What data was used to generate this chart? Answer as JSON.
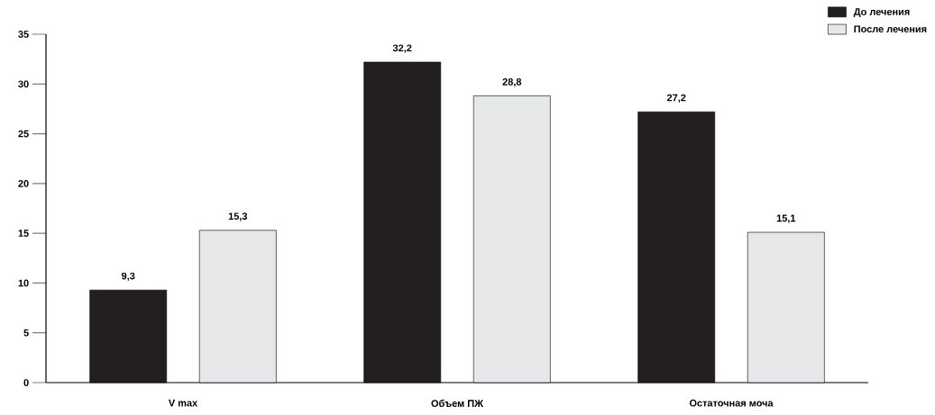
{
  "chart_data": {
    "type": "bar",
    "categories": [
      "V max",
      "Объем ПЖ",
      "Остаточная моча"
    ],
    "series": [
      {
        "name": "До лечения",
        "color": "#231f20",
        "values": [
          9.3,
          32.2,
          27.2
        ],
        "value_labels": [
          "9,3",
          "32,2",
          "27,2"
        ]
      },
      {
        "name": "После лечения",
        "color": "#e6e7e8",
        "values": [
          15.3,
          28.8,
          15.1
        ],
        "value_labels": [
          "15,3",
          "28,8",
          "15,1"
        ]
      }
    ],
    "ylim": [
      0,
      35
    ],
    "yticks": [
      0,
      5,
      10,
      15,
      20,
      25,
      30,
      35
    ],
    "grid": false,
    "legend": "top right"
  }
}
